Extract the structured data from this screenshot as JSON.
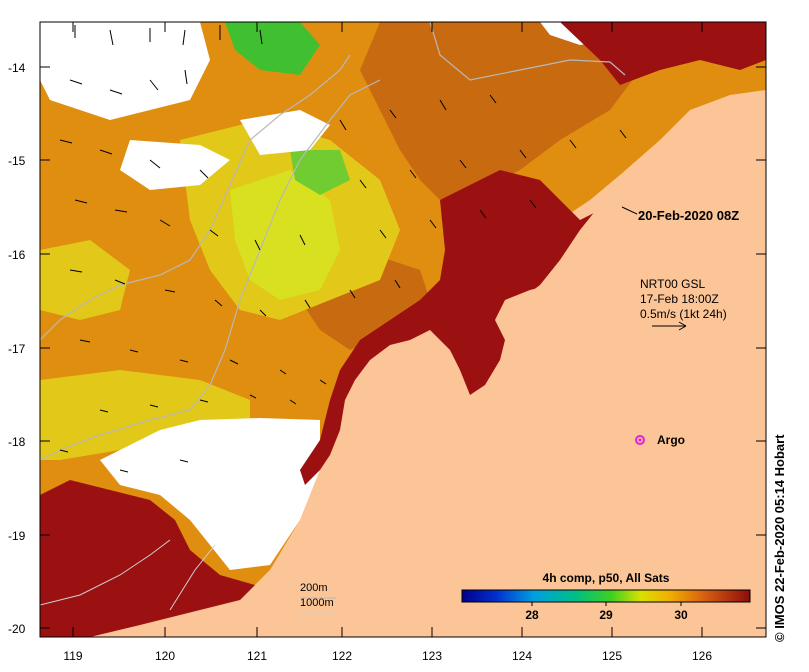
{
  "map": {
    "lon_ticks": [
      "119",
      "120",
      "121",
      "122",
      "123",
      "124",
      "125",
      "126"
    ],
    "lat_ticks": [
      "-14",
      "-15",
      "-16",
      "-17",
      "-18",
      "-19",
      "-20"
    ]
  },
  "annotations": {
    "timestamp": "20-Feb-2020 08Z",
    "current_source": "NRT00 GSL",
    "current_time": "17-Feb 18:00Z",
    "current_scale": "0.5m/s (1kt 24h)",
    "argo_label": "Argo",
    "isobath_200": "200m",
    "isobath_1000": "1000m"
  },
  "colorbar": {
    "title": "4h comp, p50, All Sats",
    "ticks": [
      "28",
      "29",
      "30"
    ]
  },
  "credit": "© IMOS 22-Feb-2020 05:14 Hobart",
  "colors": {
    "land": "#fcc597",
    "no_data": "#ffffff",
    "sst_warm": "#9b1010",
    "sst_mid": "#e08e10",
    "sst_cool": "#d8e020",
    "argo_marker": "#e020e0"
  }
}
